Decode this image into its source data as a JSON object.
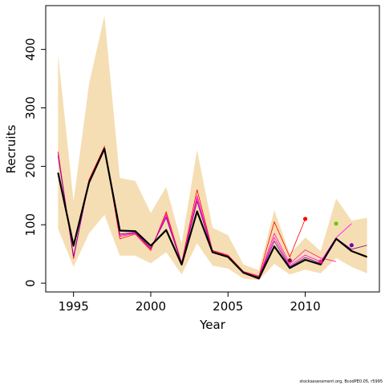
{
  "chart_data": {
    "type": "line",
    "xlabel": "Year",
    "ylabel": "Recruits",
    "xlim": [
      1993.2,
      2014.8
    ],
    "ylim": [
      -15,
      475
    ],
    "x_ticks": [
      1995,
      2000,
      2005,
      2010
    ],
    "y_ticks": [
      0,
      100,
      200,
      300,
      400
    ],
    "grid": false,
    "colors": {
      "band": "#F5DEB3",
      "main": "#000000",
      "retro": [
        "#FF0000",
        "#FF1493",
        "#FF00FF",
        "#800080"
      ],
      "endpoints": {
        "2009": "#FF0000",
        "2011": "#FF1493",
        "2012": "#66CC00",
        "2013": "#7700BB",
        "2010": "#800040"
      }
    },
    "band": {
      "x": [
        1994,
        1995,
        1996,
        1997,
        1998,
        1999,
        2000,
        2001,
        2002,
        2003,
        2004,
        2005,
        2006,
        2007,
        2008,
        2009,
        2010,
        2011,
        2012,
        2013,
        2014
      ],
      "upper": [
        392,
        140,
        340,
        458,
        180,
        175,
        120,
        165,
        68,
        228,
        95,
        82,
        32,
        22,
        125,
        50,
        78,
        55,
        145,
        107,
        112
      ],
      "lower": [
        93,
        28,
        85,
        117,
        47,
        47,
        34,
        53,
        15,
        68,
        30,
        25,
        8,
        5,
        33,
        15,
        23,
        17,
        43,
        28,
        17
      ]
    },
    "series": [
      {
        "role": "main",
        "x": [
          1994,
          1995,
          1996,
          1997,
          1998,
          1999,
          2000,
          2001,
          2002,
          2003,
          2004,
          2005,
          2006,
          2007,
          2008,
          2009,
          2010,
          2011,
          2012,
          2013,
          2014
        ],
        "values": [
          189,
          64,
          172,
          230,
          90,
          89,
          64,
          91,
          32,
          123,
          53,
          45,
          18,
          8,
          63,
          26,
          40,
          32,
          76,
          55,
          45
        ]
      },
      {
        "role": "retro",
        "x": [
          1994,
          1995,
          1996,
          1997,
          1998,
          1999,
          2000,
          2001,
          2002,
          2003,
          2004,
          2005,
          2006,
          2007,
          2008,
          2009
        ],
        "values": [
          225,
          42,
          177,
          234,
          76,
          84,
          56,
          122,
          35,
          160,
          56,
          48,
          20,
          12,
          105,
          45
        ],
        "end": 110
      },
      {
        "role": "retro",
        "x": [
          1994,
          1995,
          1996,
          1997,
          1998,
          1999,
          2000,
          2001,
          2002,
          2003,
          2004,
          2005,
          2006,
          2007,
          2008,
          2009,
          2010,
          2011
        ],
        "values": [
          222,
          44,
          175,
          232,
          80,
          85,
          58,
          118,
          34,
          150,
          55,
          47,
          19,
          11,
          85,
          33,
          57,
          43
        ],
        "end": 37
      },
      {
        "role": "retro",
        "x": [
          1994,
          1995,
          1996,
          1997,
          1998,
          1999,
          2000,
          2001,
          2002,
          2003,
          2004,
          2005,
          2006,
          2007,
          2008,
          2009,
          2010,
          2011,
          2012
        ],
        "values": [
          220,
          45,
          174,
          230,
          82,
          86,
          59,
          115,
          33,
          145,
          54,
          46,
          19,
          10,
          78,
          30,
          48,
          37,
          78
        ],
        "end": 102
      },
      {
        "role": "retro",
        "x": [
          1994,
          1995,
          1996,
          1997,
          1998,
          1999,
          2000,
          2001,
          2002,
          2003,
          2004,
          2005,
          2006,
          2007,
          2008,
          2009,
          2010,
          2011,
          2012,
          2013
        ],
        "values": [
          218,
          46,
          173,
          229,
          84,
          87,
          60,
          112,
          33,
          140,
          54,
          46,
          18,
          10,
          72,
          28,
          44,
          34,
          77,
          58
        ],
        "end": 65
      }
    ],
    "endpoint_years": [
      2009,
      2011,
      2012,
      2013,
      2010
    ]
  },
  "footnote": "stockassessment.org, BcodPE0.05, r5995"
}
